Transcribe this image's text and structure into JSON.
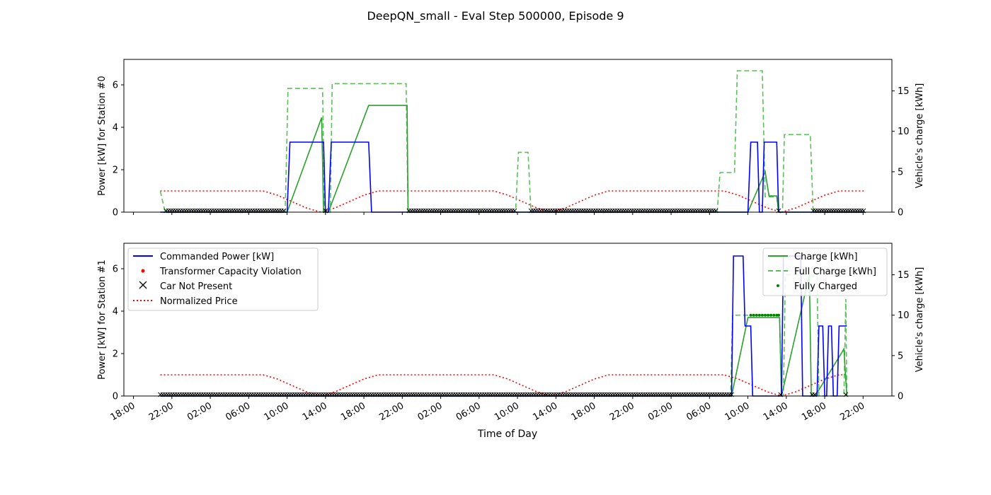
{
  "figure_title": "DeepQN_small - Eval Step 500000, Episode 9",
  "colors": {
    "commanded_power": "#0000ff",
    "charge": "#2ca02c",
    "full_charge": "#5cbf5c",
    "normalized_price": "#ff0000",
    "violation": "#ff0000",
    "not_present": "#000000",
    "fully_charged": "#008000"
  },
  "chart_data": [
    {
      "type": "line",
      "title": "",
      "xlabel": "",
      "ylabel": "Power [kW] for Station #0",
      "ylabel_right": "Vehicle's charge [kWh]",
      "x_units": "hours since first 18:00 tick",
      "xlim": [
        -1,
        79
      ],
      "ylim": [
        0,
        7.2
      ],
      "ylim_right": [
        0,
        18.9
      ],
      "yticks": [
        0,
        2,
        4,
        6
      ],
      "yticks_right": [
        0,
        5,
        10,
        15
      ],
      "x_tick_labels": [
        "18:00",
        "22:00",
        "02:00",
        "06:00",
        "10:00",
        "14:00",
        "18:00",
        "22:00",
        "02:00",
        "06:00",
        "10:00",
        "14:00",
        "18:00",
        "22:00",
        "02:00",
        "06:00",
        "10:00",
        "14:00",
        "18:00",
        "22:00"
      ],
      "grid": false,
      "series": [
        {
          "key": "commanded_power",
          "name": "Commanded Power [kW]",
          "axis": "left",
          "style": "solid",
          "points": [
            [
              2.8,
              0
            ],
            [
              16,
              0
            ],
            [
              16.3,
              3.3
            ],
            [
              19.8,
              3.3
            ],
            [
              20,
              0
            ],
            [
              20.3,
              0
            ],
            [
              20.6,
              3.3
            ],
            [
              24.5,
              3.3
            ],
            [
              24.8,
              0
            ],
            [
              64,
              0
            ],
            [
              64.3,
              3.3
            ],
            [
              65,
              3.3
            ],
            [
              65.2,
              0
            ],
            [
              65.5,
              0
            ],
            [
              65.7,
              3.3
            ],
            [
              67,
              3.3
            ],
            [
              67.2,
              0
            ],
            [
              76.2,
              0
            ]
          ]
        },
        {
          "key": "charge",
          "name": "Charge [kWh]",
          "axis": "right",
          "style": "solid",
          "points": [
            [
              2.8,
              0
            ],
            [
              16,
              0
            ],
            [
              19.6,
              11.7
            ],
            [
              19.8,
              0
            ],
            [
              20.3,
              0
            ],
            [
              24.5,
              13.2
            ],
            [
              28.5,
              13.2
            ],
            [
              28.6,
              0
            ],
            [
              64,
              0
            ],
            [
              65.8,
              5.0
            ],
            [
              66.2,
              2.0
            ],
            [
              67,
              2.0
            ],
            [
              67.2,
              0
            ],
            [
              76.2,
              0
            ]
          ]
        },
        {
          "key": "full_charge",
          "name": "Full Charge [kWh]",
          "axis": "right",
          "style": "dashed",
          "points": [
            [
              2.8,
              2.6
            ],
            [
              3.3,
              0
            ],
            [
              15.8,
              0
            ],
            [
              16.1,
              15.3
            ],
            [
              19.7,
              15.3
            ],
            [
              19.9,
              0
            ],
            [
              20.5,
              0
            ],
            [
              20.7,
              15.9
            ],
            [
              28.4,
              15.9
            ],
            [
              28.6,
              0
            ],
            [
              39.8,
              0
            ],
            [
              40.1,
              7.4
            ],
            [
              41.1,
              7.4
            ],
            [
              41.4,
              0
            ],
            [
              60.8,
              0
            ],
            [
              61.1,
              4.9
            ],
            [
              62.6,
              4.9
            ],
            [
              62.9,
              17.5
            ],
            [
              65.5,
              17.5
            ],
            [
              65.8,
              1.9
            ],
            [
              67,
              1.9
            ],
            [
              67.2,
              0
            ],
            [
              67.6,
              0
            ],
            [
              67.8,
              9.6
            ],
            [
              70.5,
              9.6
            ],
            [
              70.8,
              0
            ],
            [
              76.2,
              0
            ]
          ]
        },
        {
          "key": "normalized_price",
          "name": "Normalized Price",
          "axis": "left",
          "style": "dotted",
          "points": [
            [
              2.8,
              1.0
            ],
            [
              13.5,
              1.0
            ],
            [
              15,
              0.8
            ],
            [
              16.5,
              0.5
            ],
            [
              18,
              0.2
            ],
            [
              19.5,
              0
            ],
            [
              21,
              0.2
            ],
            [
              22.5,
              0.5
            ],
            [
              24,
              0.8
            ],
            [
              25.5,
              1.0
            ],
            [
              37.5,
              1.0
            ],
            [
              39,
              0.8
            ],
            [
              40.5,
              0.5
            ],
            [
              42,
              0.2
            ],
            [
              43.5,
              0
            ],
            [
              45,
              0.2
            ],
            [
              46.5,
              0.5
            ],
            [
              48,
              0.8
            ],
            [
              49.5,
              1.0
            ],
            [
              61.5,
              1.0
            ],
            [
              63,
              0.8
            ],
            [
              64.5,
              0.5
            ],
            [
              66,
              0.2
            ],
            [
              67.5,
              0
            ],
            [
              69,
              0.2
            ],
            [
              70.5,
              0.5
            ],
            [
              72,
              0.8
            ],
            [
              73.5,
              1.0
            ],
            [
              76.2,
              1.0
            ]
          ]
        }
      ],
      "not_present_ranges": [
        [
          3.4,
          15.8
        ],
        [
          20,
          20.2
        ],
        [
          28.7,
          39.8
        ],
        [
          41.4,
          60.8
        ],
        [
          67.2,
          67.4
        ],
        [
          70.8,
          76.2
        ]
      ],
      "fully_charged_points": [],
      "violation_points": []
    },
    {
      "type": "line",
      "title": "",
      "xlabel": "Time of Day",
      "ylabel": "Power [kW] for Station #1",
      "ylabel_right": "Vehicle's charge [kWh]",
      "x_units": "hours since first 18:00 tick",
      "xlim": [
        -1,
        79
      ],
      "ylim": [
        0,
        7.2
      ],
      "ylim_right": [
        0,
        18.9
      ],
      "yticks": [
        0,
        2,
        4,
        6
      ],
      "yticks_right": [
        0,
        5,
        10,
        15
      ],
      "x_tick_labels": [
        "18:00",
        "22:00",
        "02:00",
        "06:00",
        "10:00",
        "14:00",
        "18:00",
        "22:00",
        "02:00",
        "06:00",
        "10:00",
        "14:00",
        "18:00",
        "22:00",
        "02:00",
        "06:00",
        "10:00",
        "14:00",
        "18:00",
        "22:00"
      ],
      "grid": false,
      "legend_left": {
        "placement": "upper left",
        "entries": [
          {
            "key": "commanded_power",
            "label": "Commanded Power [kW]",
            "marker": "line-solid"
          },
          {
            "key": "violation",
            "label": "Transformer Capacity Violation",
            "marker": "dot"
          },
          {
            "key": "not_present",
            "label": "Car Not Present",
            "marker": "x"
          },
          {
            "key": "normalized_price",
            "label": "Normalized Price",
            "marker": "line-dotted"
          }
        ]
      },
      "legend_right": {
        "placement": "upper right",
        "entries": [
          {
            "key": "charge",
            "label": "Charge [kWh]",
            "marker": "line-solid"
          },
          {
            "key": "full_charge",
            "label": "Full Charge [kWh]",
            "marker": "line-dashed"
          },
          {
            "key": "fully_charged",
            "label": "Fully Charged",
            "marker": "small-dot"
          }
        ]
      },
      "series": [
        {
          "key": "commanded_power",
          "name": "Commanded Power [kW]",
          "axis": "left",
          "style": "solid",
          "points": [
            [
              2.8,
              0
            ],
            [
              62.3,
              0
            ],
            [
              62.5,
              6.6
            ],
            [
              63.5,
              6.6
            ],
            [
              63.7,
              3.3
            ],
            [
              64.3,
              3.3
            ],
            [
              64.5,
              0
            ],
            [
              67.5,
              0
            ],
            [
              67.7,
              6.6
            ],
            [
              69.5,
              6.6
            ],
            [
              69.7,
              0
            ],
            [
              71.2,
              0
            ],
            [
              71.4,
              3.3
            ],
            [
              71.8,
              3.3
            ],
            [
              72,
              0
            ],
            [
              72.2,
              0
            ],
            [
              72.4,
              3.3
            ],
            [
              72.7,
              3.3
            ],
            [
              72.9,
              0
            ],
            [
              73.3,
              0
            ],
            [
              73.5,
              3.3
            ],
            [
              74.3,
              3.3
            ]
          ]
        },
        {
          "key": "charge",
          "name": "Charge [kWh]",
          "axis": "right",
          "style": "solid",
          "points": [
            [
              2.8,
              0
            ],
            [
              62.3,
              0
            ],
            [
              64,
              9.7
            ],
            [
              67.3,
              9.7
            ],
            [
              67.5,
              0
            ],
            [
              70.4,
              15
            ],
            [
              70.6,
              0
            ],
            [
              71,
              0
            ],
            [
              74,
              5.8
            ],
            [
              74.3,
              0
            ]
          ]
        },
        {
          "key": "full_charge",
          "name": "Full Charge [kWh]",
          "axis": "right",
          "style": "dashed",
          "points": [
            [
              2.8,
              0
            ],
            [
              62.2,
              0
            ],
            [
              62.4,
              10
            ],
            [
              67.3,
              10
            ],
            [
              67.5,
              0
            ],
            [
              67.7,
              0
            ],
            [
              67.9,
              15
            ],
            [
              71.2,
              15
            ],
            [
              71.4,
              0
            ],
            [
              74,
              0
            ],
            [
              74.2,
              12
            ],
            [
              74.3,
              0
            ]
          ]
        },
        {
          "key": "normalized_price",
          "name": "Normalized Price",
          "axis": "left",
          "style": "dotted",
          "points": [
            [
              2.8,
              1.0
            ],
            [
              13.5,
              1.0
            ],
            [
              15,
              0.8
            ],
            [
              16.5,
              0.5
            ],
            [
              18,
              0.2
            ],
            [
              19.5,
              0
            ],
            [
              21,
              0.2
            ],
            [
              22.5,
              0.5
            ],
            [
              24,
              0.8
            ],
            [
              25.5,
              1.0
            ],
            [
              37.5,
              1.0
            ],
            [
              39,
              0.8
            ],
            [
              40.5,
              0.5
            ],
            [
              42,
              0.2
            ],
            [
              43.5,
              0
            ],
            [
              45,
              0.2
            ],
            [
              46.5,
              0.5
            ],
            [
              48,
              0.8
            ],
            [
              49.5,
              1.0
            ],
            [
              61.5,
              1.0
            ],
            [
              63,
              0.8
            ],
            [
              64.5,
              0.5
            ],
            [
              66,
              0.2
            ],
            [
              67.5,
              0
            ],
            [
              69,
              0.2
            ],
            [
              70.5,
              0.5
            ],
            [
              72,
              0.8
            ],
            [
              73.5,
              1.0
            ],
            [
              74.3,
              1.0
            ]
          ]
        }
      ],
      "not_present_ranges": [
        [
          2.8,
          62.3
        ],
        [
          67.4,
          67.6
        ],
        [
          70.7,
          71.1
        ],
        [
          74.2,
          74.4
        ]
      ],
      "fully_charged_points": [
        [
          64.3,
          10.0
        ],
        [
          64.6,
          10.0
        ],
        [
          64.9,
          10.0
        ],
        [
          65.2,
          10.0
        ],
        [
          65.5,
          10.0
        ],
        [
          65.8,
          10.0
        ],
        [
          66.1,
          10.0
        ],
        [
          66.4,
          10.0
        ],
        [
          66.7,
          10.0
        ],
        [
          67.0,
          10.0
        ],
        [
          67.2,
          10.0
        ]
      ],
      "violation_points": []
    }
  ]
}
